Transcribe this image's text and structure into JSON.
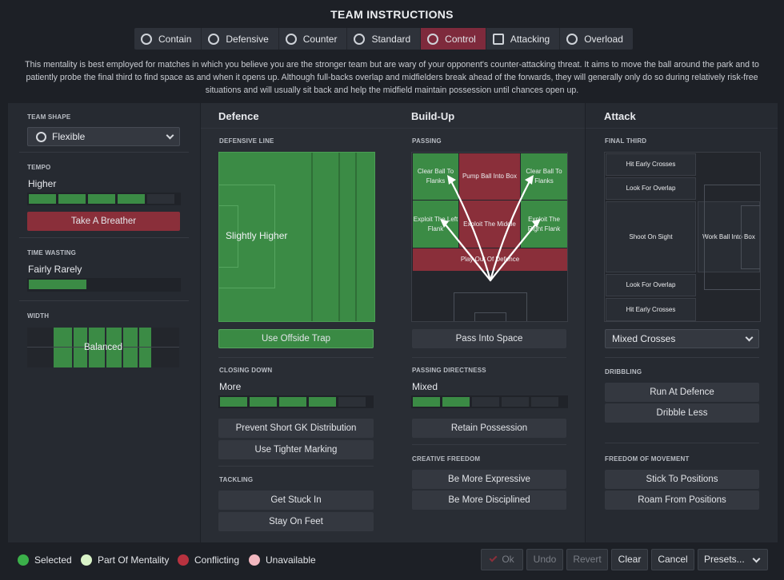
{
  "title": "TEAM INSTRUCTIONS",
  "tabs": [
    {
      "label": "Contain",
      "icon": "contain-icon"
    },
    {
      "label": "Defensive",
      "icon": "shield-icon"
    },
    {
      "label": "Counter",
      "icon": "counter-icon"
    },
    {
      "label": "Standard",
      "icon": "standard-icon"
    },
    {
      "label": "Control",
      "icon": "control-icon",
      "active": true
    },
    {
      "label": "Attacking",
      "icon": "attacking-icon"
    },
    {
      "label": "Overload",
      "icon": "overload-icon"
    }
  ],
  "description": "This mentality is best employed for matches in which you believe you are the stronger team but are wary of your opponent's counter-attacking threat. It aims to move the ball around the park and to patiently probe the final third to find space as and when it opens up. Although full-backs overlap and midfielders break ahead of the forwards, they will generally only do so during relatively risk-free situations and will usually sit back and help the midfield maintain possession until chances open up.",
  "left": {
    "team_shape_label": "TEAM SHAPE",
    "team_shape_value": "Flexible",
    "tempo_label": "TEMPO",
    "tempo_value": "Higher",
    "tempo_level": 4,
    "tempo_max": 5,
    "take_breather": "Take A Breather",
    "time_wasting_label": "TIME WASTING",
    "time_wasting_value": "Fairly Rarely",
    "time_wasting_level": 1,
    "width_label": "WIDTH",
    "width_value": "Balanced"
  },
  "defence": {
    "header": "Defence",
    "defensive_line_label": "DEFENSIVE LINE",
    "defensive_line_value": "Slightly Higher",
    "offside_trap": "Use Offside Trap",
    "closing_down_label": "CLOSING DOWN",
    "closing_down_value": "More",
    "closing_down_level": 4,
    "prevent_gk": "Prevent Short GK Distribution",
    "tighter_marking": "Use Tighter Marking",
    "tackling_label": "TACKLING",
    "get_stuck_in": "Get Stuck In",
    "stay_on_feet": "Stay On Feet"
  },
  "buildup": {
    "header": "Build-Up",
    "passing_label": "PASSING",
    "zones": {
      "clear_left": "Clear Ball To Flanks",
      "pump": "Pump Ball Into Box",
      "clear_right": "Clear Ball To Flanks",
      "exploit_left": "Exploit The Left Flank",
      "exploit_middle": "Exploit The Middle",
      "exploit_right": "Exploit The Right Flank",
      "play_out": "Play Out Of Defence"
    },
    "pass_into_space": "Pass Into Space",
    "directness_label": "PASSING DIRECTNESS",
    "directness_value": "Mixed",
    "directness_level": 2,
    "retain_possession": "Retain Possession",
    "creative_label": "CREATIVE FREEDOM",
    "more_expressive": "Be More Expressive",
    "more_disciplined": "Be More Disciplined"
  },
  "attack": {
    "header": "Attack",
    "final_third_label": "FINAL THIRD",
    "zones": {
      "hit_early_top": "Hit Early Crosses",
      "overlap_top": "Look For Overlap",
      "shoot": "Shoot On Sight",
      "work_ball": "Work Ball Into Box",
      "overlap_bottom": "Look For Overlap",
      "hit_early_bottom": "Hit Early Crosses"
    },
    "crosses_value": "Mixed Crosses",
    "dribbling_label": "DRIBBLING",
    "run_at_defence": "Run At Defence",
    "dribble_less": "Dribble Less",
    "freedom_label": "FREEDOM OF MOVEMENT",
    "stick": "Stick To Positions",
    "roam": "Roam From Positions"
  },
  "legend": {
    "selected": "Selected",
    "part_of_mentality": "Part Of Mentality",
    "conflicting": "Conflicting",
    "unavailable": "Unavailable"
  },
  "footer": {
    "ok": "Ok",
    "undo": "Undo",
    "revert": "Revert",
    "clear": "Clear",
    "cancel": "Cancel",
    "presets": "Presets..."
  },
  "colors": {
    "selected": "#3bb04a",
    "part_of_mentality": "#d9f3c8",
    "conflicting": "#b8323f",
    "unavailable": "#f2b8c0",
    "accent": "#7e2a3c"
  }
}
